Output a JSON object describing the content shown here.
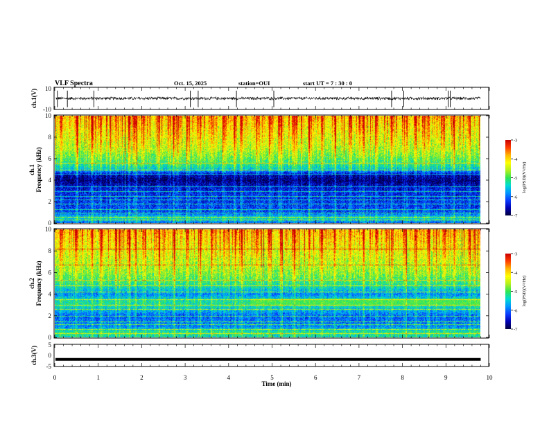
{
  "header": {
    "title": "VLF Spectra",
    "date": "Oct. 15, 2025",
    "station": "station=OUI",
    "start_ut": "start  UT =   7 : 30 : 0"
  },
  "colors": {
    "spectrogram_palette": [
      "#00003c",
      "#0000b4",
      "#0a3cff",
      "#0096ff",
      "#00dcd2",
      "#32e650",
      "#b4f01e",
      "#ffff00",
      "#ffb400",
      "#ff3c00",
      "#c80000"
    ],
    "trace": "#000000"
  },
  "chart_data": [
    {
      "type": "line",
      "id": "ch1-waveform",
      "ylabel": "ch.1(V)",
      "ylim": [
        -10,
        10
      ],
      "yticks": [
        "10",
        "-10"
      ],
      "x_range_min": [
        0,
        9.8
      ],
      "baseline_v": 0,
      "noise_amplitude_v": 1.5,
      "spike_times_min": [
        0.06,
        0.29,
        0.9,
        3.12,
        3.3,
        4.18,
        5.04,
        7.75,
        8.03,
        9.05,
        9.1
      ]
    },
    {
      "type": "heatmap",
      "id": "ch1-spectrogram",
      "ylabel": "ch.1\nFrequency (kHz)",
      "ylim": [
        0,
        10
      ],
      "yticks": [
        "0",
        "2",
        "4",
        "6",
        "8",
        "10"
      ],
      "x_range_min": [
        0,
        9.8
      ],
      "colorbar": {
        "label": "log(PSD)(V²/Hz)",
        "range": [
          -7,
          -3
        ],
        "ticks": [
          "-3",
          "-4",
          "-5",
          "-6",
          "-7"
        ]
      },
      "intensity_profile": {
        "freq_khz": [
          0,
          0.5,
          1,
          2,
          3,
          3.5,
          4,
          4.6,
          5,
          5.5,
          6,
          7,
          8,
          9,
          10
        ],
        "log_psd": [
          -6.1,
          -5.4,
          -6.2,
          -6.3,
          -6.4,
          -6.6,
          -6.9,
          -6.6,
          -5.6,
          -5.2,
          -5.0,
          -4.6,
          -4.4,
          -4.2,
          -4.0
        ]
      },
      "horizontal_lines_khz": [
        0.3,
        0.6,
        1.0,
        1.3,
        1.8,
        2.2,
        2.5,
        3.0,
        3.4,
        4.6,
        5.0,
        5.6
      ],
      "sferic_times_min": [
        0.15,
        0.5,
        0.85,
        1.05,
        1.4,
        1.7,
        1.85,
        2.05,
        2.4,
        2.75,
        3.05,
        3.35,
        3.6,
        3.9,
        4.15,
        4.3,
        4.65,
        4.95,
        5.2,
        5.5,
        5.85,
        6.15,
        6.45,
        6.8,
        7.1,
        7.4,
        7.75,
        8.05,
        8.3,
        8.6,
        8.95,
        9.2,
        9.55
      ]
    },
    {
      "type": "heatmap",
      "id": "ch2-spectrogram",
      "ylabel": "ch.2\nFrequency (kHz)",
      "ylim": [
        0,
        10
      ],
      "yticks": [
        "0",
        "2",
        "4",
        "6",
        "8",
        "10"
      ],
      "x_range_min": [
        0,
        9.8
      ],
      "colorbar": {
        "label": "log(PSD)(V²/Hz)",
        "range": [
          -7,
          -3
        ],
        "ticks": [
          "-3",
          "-4",
          "-5",
          "-6",
          "-7"
        ]
      },
      "intensity_profile": {
        "freq_khz": [
          0,
          0.5,
          1,
          2,
          3,
          3.4,
          4,
          5,
          6,
          7,
          8,
          9,
          10
        ],
        "log_psd": [
          -5.4,
          -5.2,
          -5.9,
          -6.1,
          -5.3,
          -5.3,
          -5.9,
          -5.2,
          -4.8,
          -4.6,
          -4.4,
          -4.2,
          -4.0
        ]
      },
      "horizontal_lines_khz": [
        0.4,
        0.8,
        1.2,
        1.5,
        2.0,
        2.6,
        3.0,
        3.5,
        4.2,
        4.8,
        5.3,
        6.7,
        8.2
      ],
      "late_band": {
        "start_min": 4.5,
        "freq_khz": [
          3.0,
          3.6
        ],
        "log_psd": -5.0
      },
      "sferic_times_min": [
        0.15,
        0.5,
        0.85,
        1.05,
        1.4,
        1.7,
        1.85,
        2.05,
        2.4,
        2.75,
        3.05,
        3.35,
        3.6,
        3.9,
        4.15,
        4.3,
        4.65,
        4.95,
        5.2,
        5.5,
        5.85,
        6.15,
        6.45,
        6.8,
        7.1,
        7.4,
        7.75,
        8.05,
        8.3,
        8.6,
        8.95,
        9.2,
        9.55
      ]
    },
    {
      "type": "line",
      "id": "ch3-waveform",
      "ylabel": "ch.3(V)",
      "ylim": [
        -5,
        5
      ],
      "yticks": [
        "5",
        "0",
        "-5"
      ],
      "x_range_min": [
        0,
        9.8
      ],
      "constant_value_v": -1.8,
      "xlabel": "Time  (min)",
      "xlim": [
        0,
        10
      ],
      "xticks": [
        "0",
        "1",
        "2",
        "3",
        "4",
        "5",
        "6",
        "7",
        "8",
        "9",
        "10"
      ]
    }
  ]
}
